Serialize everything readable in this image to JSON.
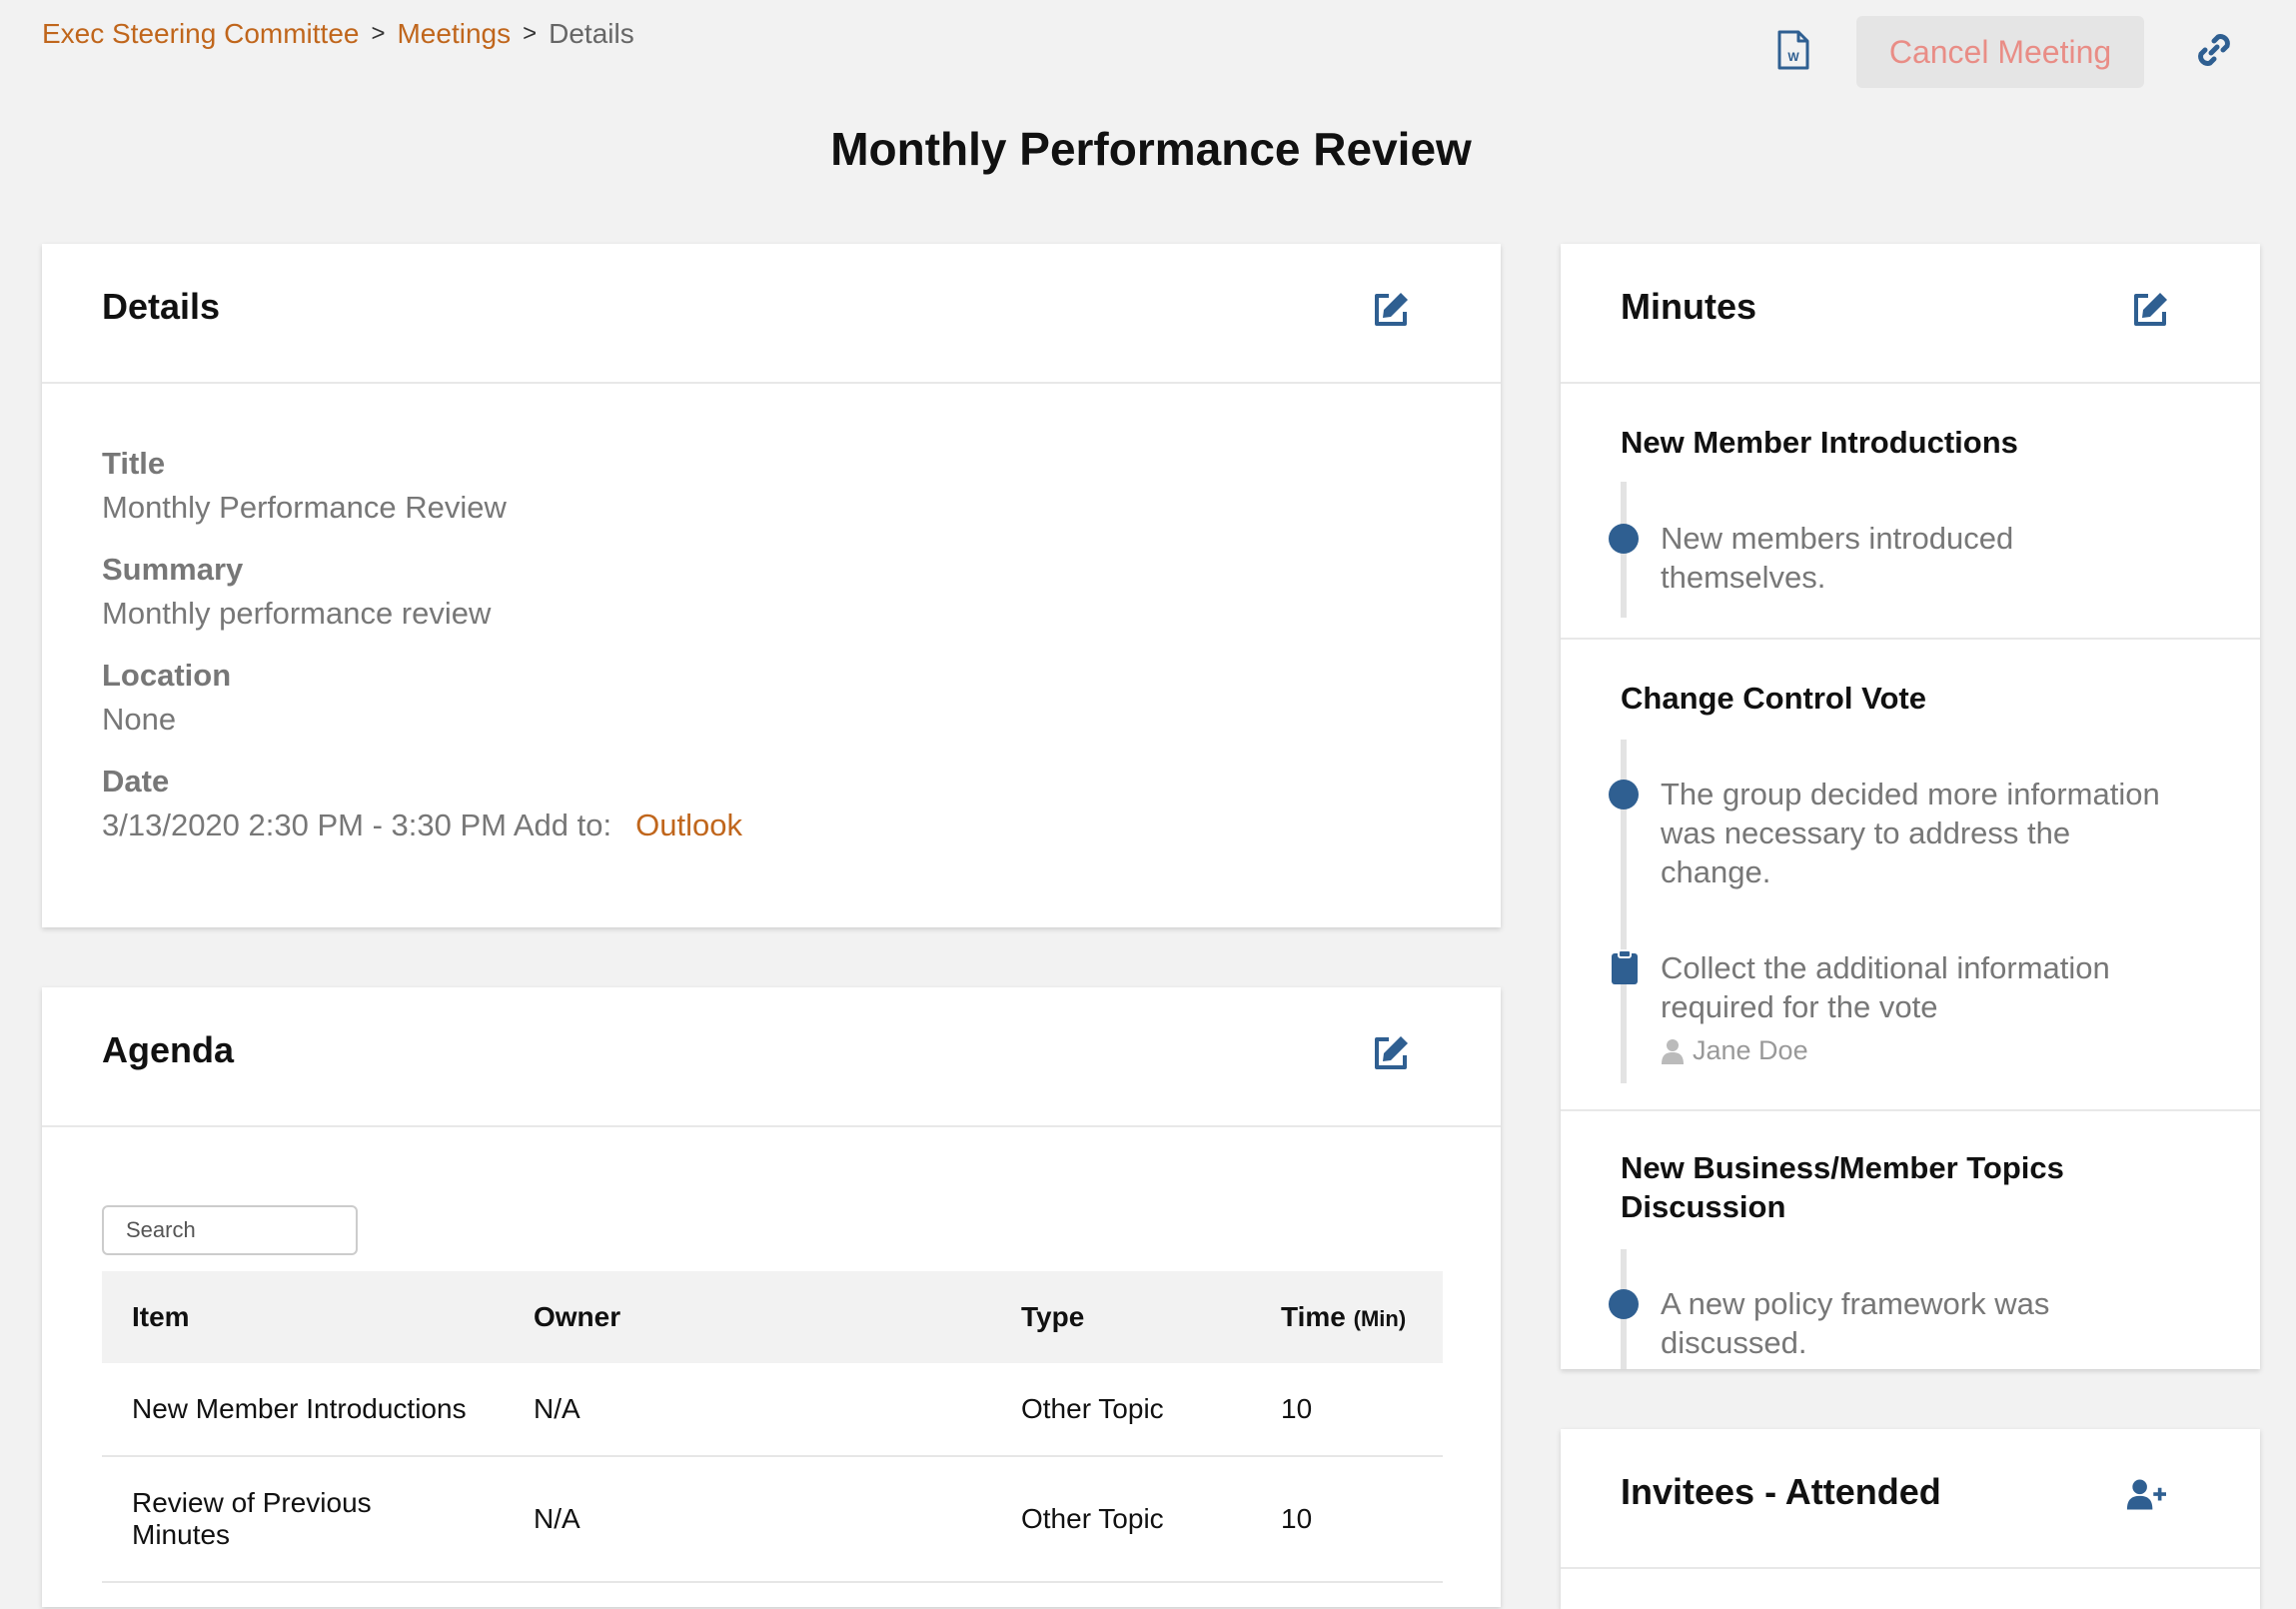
{
  "breadcrumb": {
    "items": [
      "Exec Steering Committee",
      "Meetings"
    ],
    "current": "Details",
    "separator": ">"
  },
  "toolbar": {
    "word_icon": "word-document-icon",
    "cancel_label": "Cancel Meeting",
    "link_icon": "link-icon"
  },
  "page_title": "Monthly Performance Review",
  "details": {
    "title": "Details",
    "fields": {
      "title_label": "Title",
      "title_value": "Monthly Performance Review",
      "summary_label": "Summary",
      "summary_value": "Monthly performance review",
      "location_label": "Location",
      "location_value": "None",
      "date_label": "Date",
      "date_value": "3/13/2020 2:30 PM - 3:30 PM Add to:",
      "outlook_link": "Outlook"
    }
  },
  "agenda": {
    "title": "Agenda",
    "search_placeholder": "Search",
    "columns": {
      "item": "Item",
      "owner": "Owner",
      "type": "Type",
      "time": "Time",
      "time_unit": "(Min)"
    },
    "rows": [
      {
        "item": "New Member Introductions",
        "owner": "N/A",
        "type": "Other Topic",
        "time": "10"
      },
      {
        "item_line1": "Review of Previous",
        "item_line2": "Minutes",
        "owner": "N/A",
        "type": "Other Topic",
        "time": "10"
      }
    ]
  },
  "minutes": {
    "title": "Minutes",
    "topics": [
      {
        "title": "New Member Introductions",
        "notes": [
          {
            "kind": "note",
            "line1": "New members introduced",
            "line2": "themselves."
          }
        ]
      },
      {
        "title": "Change Control Vote",
        "notes": [
          {
            "kind": "note",
            "line1": "The group decided more information",
            "line2": "was necessary to address the",
            "line3": "change."
          },
          {
            "kind": "action",
            "line1": "Collect the additional information",
            "line2": "required for the vote",
            "assignee": "Jane Doe"
          }
        ]
      },
      {
        "title_line1": "New Business/Member Topics",
        "title_line2": "Discussion",
        "notes": [
          {
            "kind": "note",
            "line1": "A new policy framework was",
            "line2": "discussed."
          }
        ]
      }
    ]
  },
  "invitees": {
    "title": "Invitees - Attended",
    "add_icon": "add-user-icon"
  },
  "colors": {
    "accent": "#c0661c",
    "icon_blue": "#2f5f91",
    "cancel_text": "#e98d86"
  }
}
